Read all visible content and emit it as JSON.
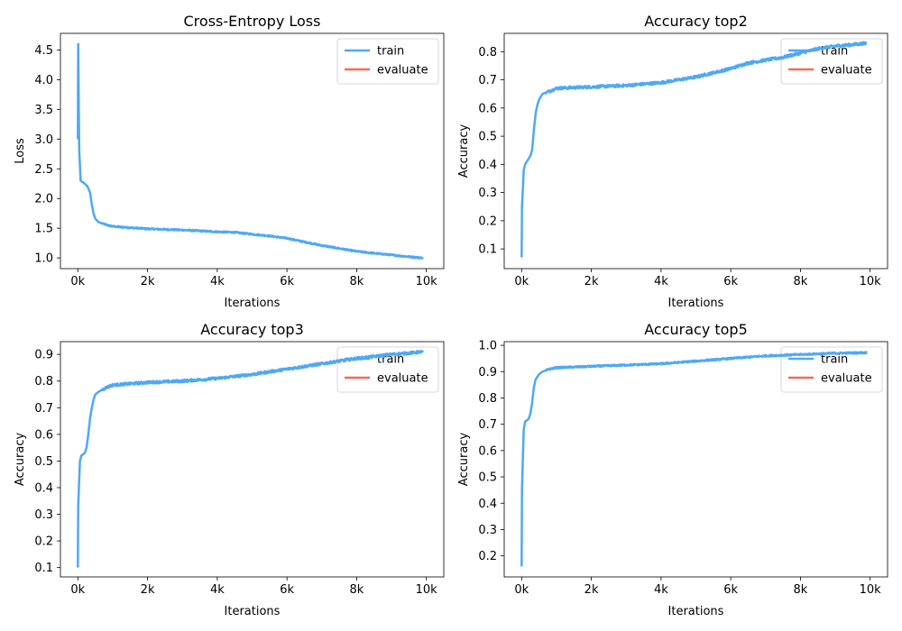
{
  "figure": {
    "background": "#ffffff"
  },
  "colors": {
    "train": "#4fa8f5",
    "evaluate": "#ef6e55"
  },
  "chart_data": [
    {
      "type": "line",
      "title": "Cross-Entropy Loss",
      "xlabel": "Iterations",
      "ylabel": "Loss",
      "xlim": [
        -500,
        10500
      ],
      "ylim": [
        0.82,
        4.78
      ],
      "xticks": [
        0,
        2000,
        4000,
        6000,
        8000,
        10000
      ],
      "xtick_labels": [
        "0k",
        "2k",
        "4k",
        "6k",
        "8k",
        "10k"
      ],
      "yticks": [
        1.0,
        1.5,
        2.0,
        2.5,
        3.0,
        3.5,
        4.0,
        4.5
      ],
      "ytick_labels": [
        "1.0",
        "1.5",
        "2.0",
        "2.5",
        "3.0",
        "3.5",
        "4.0",
        "4.5"
      ],
      "legend": {
        "entries": [
          "train",
          "evaluate"
        ],
        "position": "upper right"
      },
      "grid": false,
      "series": [
        {
          "name": "train",
          "x": [
            0,
            10,
            20,
            40,
            80,
            150,
            200,
            280,
            350,
            400,
            450,
            500,
            600,
            800,
            1000,
            1500,
            2000,
            3000,
            4000,
            4500,
            5000,
            5500,
            6000,
            6500,
            7000,
            7500,
            8000,
            8500,
            9000,
            9500,
            9900
          ],
          "y": [
            3.0,
            4.6,
            3.9,
            2.8,
            2.3,
            2.27,
            2.25,
            2.2,
            2.1,
            1.9,
            1.75,
            1.66,
            1.6,
            1.56,
            1.53,
            1.51,
            1.49,
            1.47,
            1.44,
            1.43,
            1.4,
            1.37,
            1.33,
            1.27,
            1.21,
            1.16,
            1.11,
            1.08,
            1.05,
            1.02,
            1.0
          ],
          "noise": 0.012
        },
        {
          "name": "evaluate",
          "x": [],
          "y": []
        }
      ]
    },
    {
      "type": "line",
      "title": "Accuracy top2",
      "xlabel": "Iterations",
      "ylabel": "Accuracy",
      "xlim": [
        -500,
        10500
      ],
      "ylim": [
        0.03,
        0.865
      ],
      "xticks": [
        0,
        2000,
        4000,
        6000,
        8000,
        10000
      ],
      "xtick_labels": [
        "0k",
        "2k",
        "4k",
        "6k",
        "8k",
        "10k"
      ],
      "yticks": [
        0.1,
        0.2,
        0.3,
        0.4,
        0.5,
        0.6,
        0.7,
        0.8
      ],
      "ytick_labels": [
        "0.1",
        "0.2",
        "0.3",
        "0.4",
        "0.5",
        "0.6",
        "0.7",
        "0.8"
      ],
      "legend": {
        "entries": [
          "train",
          "evaluate"
        ],
        "position": "upper right"
      },
      "grid": false,
      "series": [
        {
          "name": "train",
          "x": [
            0,
            10,
            30,
            60,
            100,
            200,
            250,
            300,
            350,
            400,
            450,
            500,
            600,
            800,
            1000,
            2000,
            3000,
            4000,
            5000,
            6000,
            6500,
            7000,
            7500,
            8000,
            8500,
            9000,
            9500,
            9900
          ],
          "y": [
            0.07,
            0.25,
            0.3,
            0.38,
            0.4,
            0.42,
            0.43,
            0.45,
            0.52,
            0.58,
            0.61,
            0.63,
            0.65,
            0.66,
            0.67,
            0.675,
            0.68,
            0.69,
            0.71,
            0.74,
            0.76,
            0.77,
            0.78,
            0.795,
            0.81,
            0.82,
            0.825,
            0.83
          ],
          "noise": 0.005
        },
        {
          "name": "evaluate",
          "x": [],
          "y": []
        }
      ]
    },
    {
      "type": "line",
      "title": "Accuracy top3",
      "xlabel": "Iterations",
      "ylabel": "Accuracy",
      "xlim": [
        -500,
        10500
      ],
      "ylim": [
        0.065,
        0.948
      ],
      "xticks": [
        0,
        2000,
        4000,
        6000,
        8000,
        10000
      ],
      "xtick_labels": [
        "0k",
        "2k",
        "4k",
        "6k",
        "8k",
        "10k"
      ],
      "yticks": [
        0.1,
        0.2,
        0.3,
        0.4,
        0.5,
        0.6,
        0.7,
        0.8,
        0.9
      ],
      "ytick_labels": [
        "0.1",
        "0.2",
        "0.3",
        "0.4",
        "0.5",
        "0.6",
        "0.7",
        "0.8",
        "0.9"
      ],
      "legend": {
        "entries": [
          "train",
          "evaluate"
        ],
        "position": "upper right"
      },
      "grid": false,
      "series": [
        {
          "name": "train",
          "x": [
            0,
            10,
            30,
            60,
            100,
            200,
            250,
            300,
            350,
            400,
            450,
            500,
            600,
            800,
            1000,
            2000,
            3000,
            4000,
            5000,
            6000,
            6500,
            7000,
            7500,
            8000,
            8500,
            9000,
            9500,
            9900
          ],
          "y": [
            0.1,
            0.33,
            0.4,
            0.5,
            0.52,
            0.53,
            0.55,
            0.6,
            0.66,
            0.7,
            0.73,
            0.75,
            0.76,
            0.775,
            0.785,
            0.795,
            0.8,
            0.81,
            0.825,
            0.845,
            0.855,
            0.865,
            0.875,
            0.885,
            0.892,
            0.9,
            0.905,
            0.91
          ],
          "noise": 0.005
        },
        {
          "name": "evaluate",
          "x": [],
          "y": []
        }
      ]
    },
    {
      "type": "line",
      "title": "Accuracy top5",
      "xlabel": "Iterations",
      "ylabel": "Accuracy",
      "xlim": [
        -500,
        10500
      ],
      "ylim": [
        0.12,
        1.014
      ],
      "xticks": [
        0,
        2000,
        4000,
        6000,
        8000,
        10000
      ],
      "xtick_labels": [
        "0k",
        "2k",
        "4k",
        "6k",
        "8k",
        "10k"
      ],
      "yticks": [
        0.2,
        0.3,
        0.4,
        0.5,
        0.6,
        0.7,
        0.8,
        0.9,
        1.0
      ],
      "ytick_labels": [
        "0.2",
        "0.3",
        "0.4",
        "0.5",
        "0.6",
        "0.7",
        "0.8",
        "0.9",
        "1.0"
      ],
      "legend": {
        "entries": [
          "train",
          "evaluate"
        ],
        "position": "upper right"
      },
      "grid": false,
      "series": [
        {
          "name": "train",
          "x": [
            0,
            10,
            30,
            60,
            100,
            200,
            250,
            300,
            350,
            400,
            450,
            500,
            600,
            800,
            1000,
            2000,
            3000,
            4000,
            5000,
            6000,
            7000,
            8000,
            9000,
            9900
          ],
          "y": [
            0.16,
            0.45,
            0.55,
            0.68,
            0.71,
            0.72,
            0.74,
            0.78,
            0.84,
            0.87,
            0.88,
            0.89,
            0.9,
            0.91,
            0.915,
            0.92,
            0.925,
            0.93,
            0.94,
            0.95,
            0.96,
            0.965,
            0.97,
            0.972
          ],
          "noise": 0.003
        },
        {
          "name": "evaluate",
          "x": [],
          "y": []
        }
      ]
    }
  ]
}
